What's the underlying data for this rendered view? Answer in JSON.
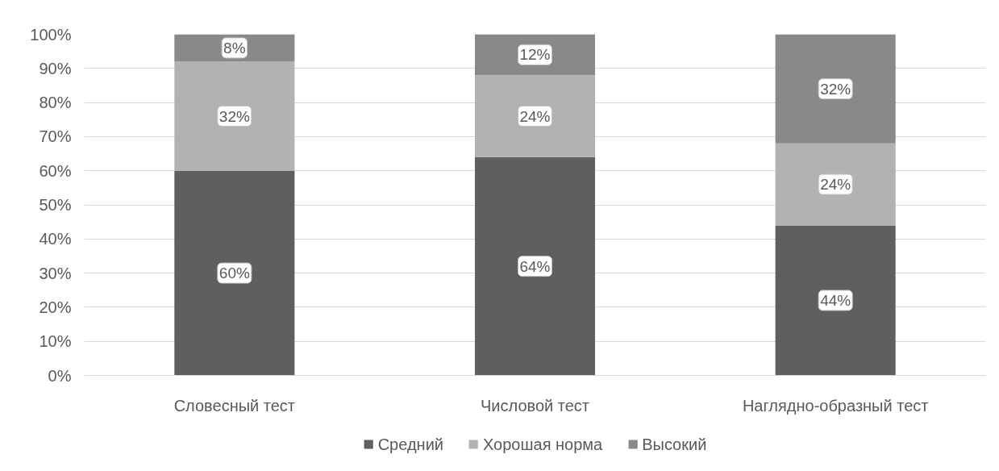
{
  "chart_data": {
    "type": "bar",
    "stacked": true,
    "categories": [
      "Словесный тест",
      "Числовой тест",
      "Наглядно-образный тест"
    ],
    "series": [
      {
        "name": "Средний",
        "color": "#5f5f5f",
        "values": [
          60,
          64,
          44
        ],
        "value_labels": [
          "60%",
          "64%",
          "44%"
        ]
      },
      {
        "name": "Хорошая норма",
        "color": "#b2b2b2",
        "values": [
          32,
          24,
          24
        ],
        "value_labels": [
          "32%",
          "24%",
          "24%"
        ]
      },
      {
        "name": "Высокий",
        "color": "#898989",
        "values": [
          8,
          12,
          32
        ],
        "value_labels": [
          "8%",
          "12%",
          "32%"
        ]
      }
    ],
    "ylim": [
      0,
      100
    ],
    "yticks": [
      {
        "value": 0,
        "label": "0%"
      },
      {
        "value": 10,
        "label": "10%"
      },
      {
        "value": 20,
        "label": "20%"
      },
      {
        "value": 30,
        "label": "30%"
      },
      {
        "value": 40,
        "label": "40%"
      },
      {
        "value": 50,
        "label": "50%"
      },
      {
        "value": 60,
        "label": "60%"
      },
      {
        "value": 70,
        "label": "70%"
      },
      {
        "value": 80,
        "label": "80%"
      },
      {
        "value": 90,
        "label": "90%"
      },
      {
        "value": 100,
        "label": "100%"
      }
    ],
    "grid": "y",
    "legend": "bottom"
  }
}
